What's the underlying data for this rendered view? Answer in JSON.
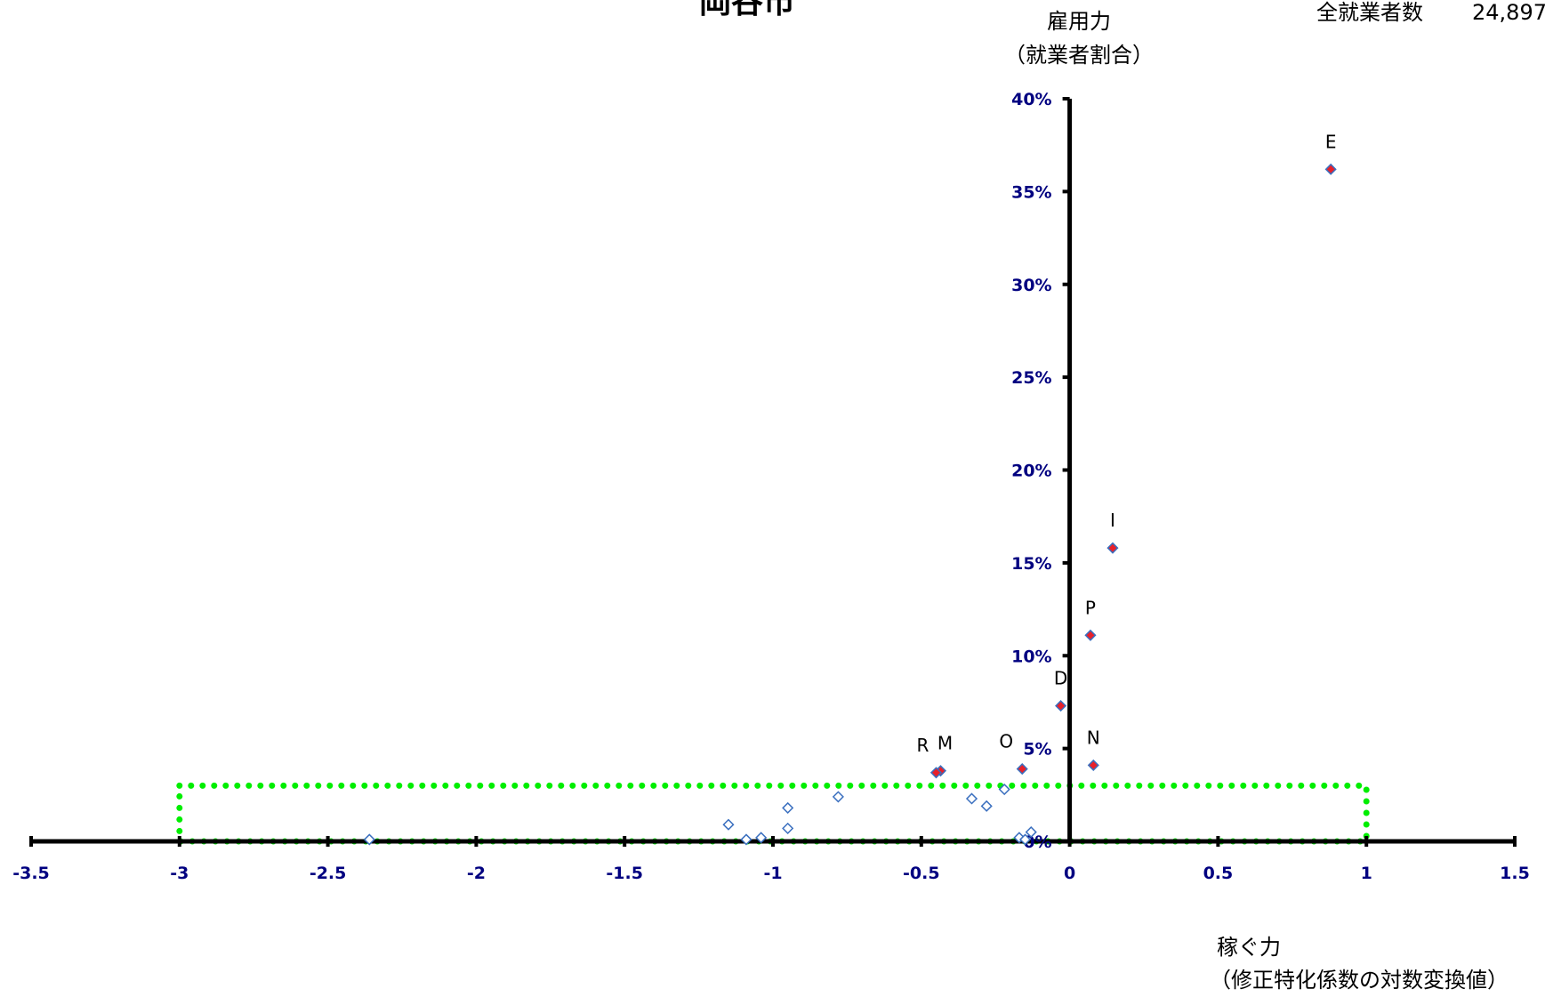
{
  "chart_data": {
    "type": "scatter",
    "title": "岡谷市",
    "total_label": "全就業者数",
    "total_value": "24,897",
    "xlabel": [
      "稼ぐ力",
      "（修正特化係数の対数変換値）"
    ],
    "ylabel": [
      "雇用力",
      "（就業者割合）"
    ],
    "xlim": [
      -3.5,
      1.5
    ],
    "ylim": [
      0,
      0.4
    ],
    "xticks": [
      -3.5,
      -3,
      -2.5,
      -2,
      -1.5,
      -1,
      -0.5,
      0,
      0.5,
      1,
      1.5
    ],
    "xtick_labels": [
      "-3.5",
      "-3",
      "-2.5",
      "-2",
      "-1.5",
      "-1",
      "-0.5",
      "0",
      "0.5",
      "1",
      "1.5"
    ],
    "yticks": [
      0,
      0.05,
      0.1,
      0.15,
      0.2,
      0.25,
      0.3,
      0.35,
      0.4
    ],
    "ytick_labels": [
      "0%",
      "5%",
      "10%",
      "15%",
      "20%",
      "25%",
      "30%",
      "35%",
      "40%"
    ],
    "grid": false,
    "highlight_box": {
      "x": [
        -3,
        1
      ],
      "y": [
        0,
        0.03
      ],
      "color": "#00ee00"
    },
    "colors": {
      "axis": "#000000",
      "tick_text": "#000080",
      "labeled_fill": "#e8202a",
      "labeled_edge": "#3a6fbf",
      "other_edge": "#3a6fbf"
    },
    "labeled_points": [
      {
        "label": "E",
        "x": 0.88,
        "y": 0.362
      },
      {
        "label": "I",
        "x": 0.145,
        "y": 0.158
      },
      {
        "label": "P",
        "x": 0.07,
        "y": 0.111
      },
      {
        "label": "D",
        "x": -0.03,
        "y": 0.073
      },
      {
        "label": "N",
        "x": 0.08,
        "y": 0.041
      },
      {
        "label": "O",
        "x": -0.16,
        "y": 0.039
      },
      {
        "label": "M",
        "x": -0.435,
        "y": 0.038
      },
      {
        "label": "R",
        "x": -0.45,
        "y": 0.037
      }
    ],
    "other_points": [
      {
        "x": -0.78,
        "y": 0.024
      },
      {
        "x": -0.33,
        "y": 0.023
      },
      {
        "x": -0.22,
        "y": 0.028
      },
      {
        "x": -0.28,
        "y": 0.019
      },
      {
        "x": -0.95,
        "y": 0.018
      },
      {
        "x": -1.15,
        "y": 0.009
      },
      {
        "x": -0.95,
        "y": 0.007
      },
      {
        "x": -1.04,
        "y": 0.002
      },
      {
        "x": -1.09,
        "y": 0.001
      },
      {
        "x": -2.36,
        "y": 0.001
      },
      {
        "x": -0.13,
        "y": 0.005
      },
      {
        "x": -0.17,
        "y": 0.002
      },
      {
        "x": -0.15,
        "y": 0.001
      }
    ]
  }
}
